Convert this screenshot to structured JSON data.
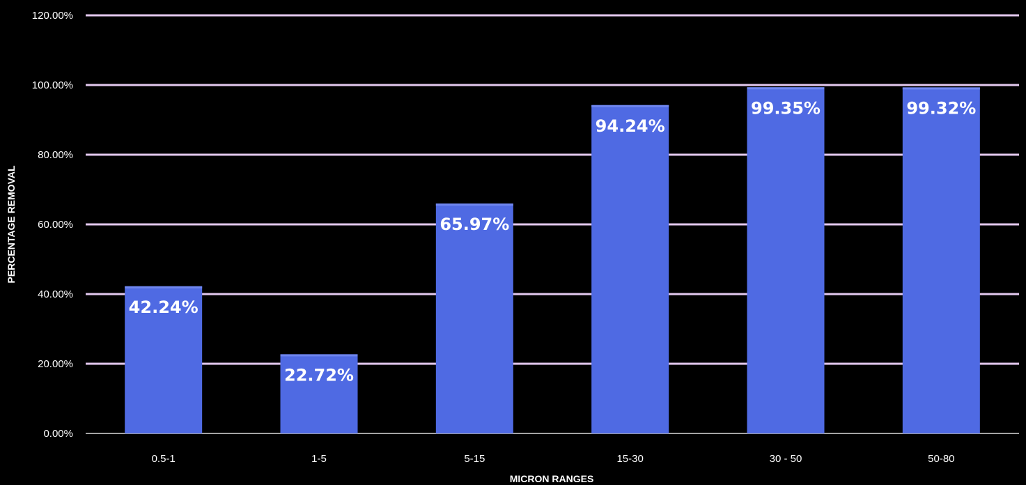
{
  "chart_data": {
    "type": "bar",
    "title": "",
    "xlabel": "MICRON RANGES",
    "ylabel": "PERCENTAGE REMOVAL",
    "categories": [
      "0.5-1",
      "1-5",
      "5-15",
      "15-30",
      "30 - 50",
      "50-80"
    ],
    "values": [
      42.24,
      22.72,
      65.97,
      94.24,
      99.35,
      99.32
    ],
    "data_labels": [
      "42.24%",
      "22.72%",
      "65.97%",
      "94.24%",
      "99.35%",
      "99.32%"
    ],
    "ylim": [
      0,
      120
    ],
    "y_ticks": [
      0,
      20,
      40,
      60,
      80,
      100,
      120
    ],
    "y_tick_labels": [
      "0.00%",
      "20.00%",
      "40.00%",
      "60.00%",
      "80.00%",
      "100.00%",
      "120.00%"
    ],
    "grid": true,
    "legend": "none",
    "colors": {
      "bar": "#4f6ae3",
      "gridline": "#e3c9ef",
      "background": "#000000",
      "text": "#ffffff"
    }
  }
}
